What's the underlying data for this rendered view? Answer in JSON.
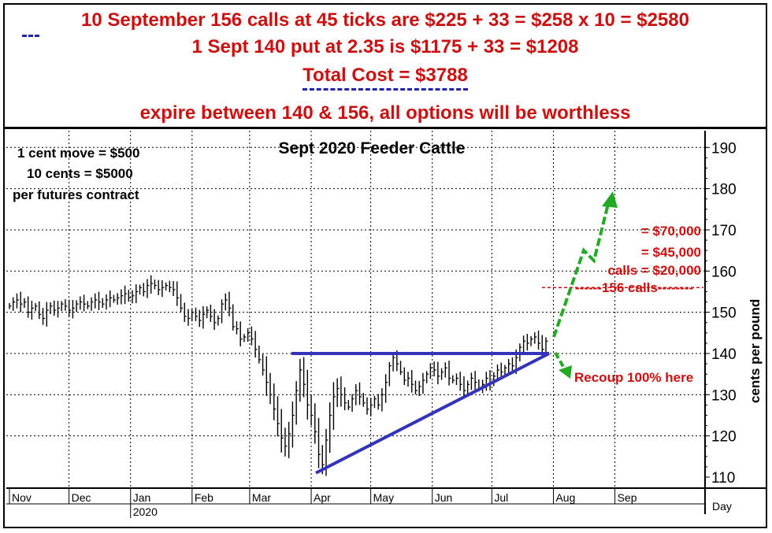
{
  "header": {
    "line1": "10 September 156 calls at 45 ticks are $225 + 33 = $258 x 10 = $2580",
    "line2": "1 Sept 140 put at 2.35 is $1175 + 33 = $1208",
    "line3": "Total Cost = $3788",
    "line4": "expire between 140 & 156, all options will be worthless"
  },
  "notes": {
    "line1": "1 cent move = $500",
    "line2": "10 cents = $5000",
    "line3": "per futures contract"
  },
  "annotations": {
    "a70": "= $70,000",
    "a45": "= $45,000",
    "a20": "calls = $20,000",
    "calls156": "------156 calls--------",
    "recoup": "Recoup 100% here"
  },
  "colors": {
    "red": "#cc1010",
    "blue": "#3333bb",
    "green": "#22aa22",
    "bars": "#000000"
  },
  "chart_data": {
    "type": "bar",
    "title": "Sept 2020 Feeder Cattle",
    "ylabel": "cents per pound",
    "xlabel": "Day",
    "ylim": [
      105,
      193
    ],
    "yticks": [
      110,
      120,
      130,
      140,
      150,
      160,
      170,
      180,
      190
    ],
    "months": [
      "Nov",
      "Dec",
      "Jan",
      "Feb",
      "Mar",
      "Apr",
      "May",
      "Jun",
      "Jul",
      "Aug",
      "Sep"
    ],
    "year_label": "2020",
    "grid": true,
    "closes": [
      151.5,
      152.5,
      153.0,
      152.0,
      152.5,
      150.0,
      151.0,
      151.5,
      149.5,
      148.5,
      150.5,
      151.5,
      150.5,
      151.0,
      152.0,
      151.5,
      150.5,
      151.0,
      152.0,
      152.5,
      152.0,
      151.5,
      152.5,
      153.0,
      152.5,
      152.0,
      153.0,
      153.5,
      153.0,
      153.5,
      154.0,
      154.5,
      153.5,
      154.0,
      155.0,
      156.0,
      155.0,
      156.5,
      157.0,
      156.5,
      155.5,
      156.0,
      156.5,
      156.0,
      155.5,
      153.5,
      151.0,
      149.0,
      148.5,
      150.0,
      149.0,
      148.0,
      149.5,
      150.5,
      149.0,
      147.5,
      148.5,
      152.0,
      153.0,
      151.0,
      146.5,
      146.0,
      143.5,
      144.0,
      145.0,
      143.5,
      141.0,
      138.5,
      136.0,
      133.0,
      130.0,
      126.5,
      123.0,
      119.5,
      117.5,
      120.5,
      125.0,
      131.0,
      136.0,
      132.5,
      127.5,
      125.0,
      121.0,
      115.5,
      113.0,
      119.0,
      125.0,
      129.5,
      131.5,
      130.0,
      128.0,
      127.0,
      129.0,
      131.0,
      129.5,
      128.0,
      126.5,
      127.5,
      129.0,
      127.5,
      130.0,
      133.0,
      137.0,
      139.0,
      137.5,
      135.5,
      133.5,
      134.0,
      132.5,
      131.0,
      132.0,
      133.5,
      135.0,
      136.5,
      136.0,
      134.5,
      135.5,
      136.5,
      134.0,
      133.5,
      134.0,
      132.5,
      131.0,
      132.5,
      134.0,
      133.0,
      131.5,
      132.5,
      134.0,
      133.0,
      134.5,
      136.0,
      135.5,
      136.5,
      137.5,
      137.0,
      139.0,
      141.5,
      143.0,
      142.5,
      143.5,
      144.0,
      142.5,
      141.0,
      143.0
    ],
    "triangle": {
      "resistance": [
        {
          "date": "Mar 22",
          "value": 140
        },
        {
          "date": "Jul 31",
          "value": 140
        }
      ],
      "support": [
        {
          "date": "Apr 2",
          "value": 111
        },
        {
          "date": "Jul 31",
          "value": 140
        }
      ]
    },
    "projection_up": [
      144,
      158,
      164,
      161,
      178
    ],
    "projection_down": [
      144,
      135
    ],
    "levels": [
      {
        "label": "= $70,000",
        "value": 170
      },
      {
        "label": "= $45,000",
        "value": 165
      },
      {
        "label": "calls = $20,000",
        "value": 160
      },
      {
        "label": "156 calls",
        "value": 156
      }
    ]
  }
}
